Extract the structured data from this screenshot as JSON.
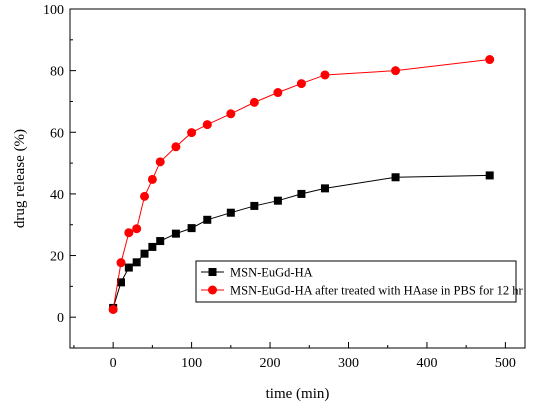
{
  "chart_data": {
    "type": "line",
    "xlabel": "time (min)",
    "ylabel": "drug release (%)",
    "xlim": [
      -55,
      525
    ],
    "ylim": [
      -10,
      100
    ],
    "xticks": [
      0,
      100,
      200,
      300,
      400,
      500
    ],
    "yticks": [
      0,
      20,
      40,
      60,
      80,
      100
    ],
    "grid": false,
    "legend_position": "bottom-right",
    "series": [
      {
        "name": "MSN-EuGd-HA",
        "marker": "square",
        "color": "#000000",
        "x": [
          0,
          10,
          20,
          30,
          40,
          50,
          60,
          80,
          100,
          120,
          150,
          180,
          210,
          240,
          270,
          360,
          480
        ],
        "y": [
          3,
          11.3,
          16.1,
          17.8,
          20.6,
          22.8,
          24.7,
          27.1,
          28.9,
          31.6,
          33.9,
          36.1,
          37.8,
          40.0,
          41.8,
          45.4,
          46.0
        ]
      },
      {
        "name": "MSN-EuGd-HA after treated with HAase in PBS for 12 hr",
        "marker": "circle",
        "color": "#ff0000",
        "x": [
          0,
          10,
          20,
          30,
          40,
          50,
          60,
          80,
          100,
          120,
          150,
          180,
          210,
          240,
          270,
          360,
          480
        ],
        "y": [
          2.5,
          17.7,
          27.4,
          28.7,
          39.2,
          44.7,
          50.4,
          55.3,
          59.9,
          62.5,
          66.0,
          69.7,
          72.9,
          75.8,
          78.6,
          80.0,
          83.6
        ]
      }
    ]
  }
}
